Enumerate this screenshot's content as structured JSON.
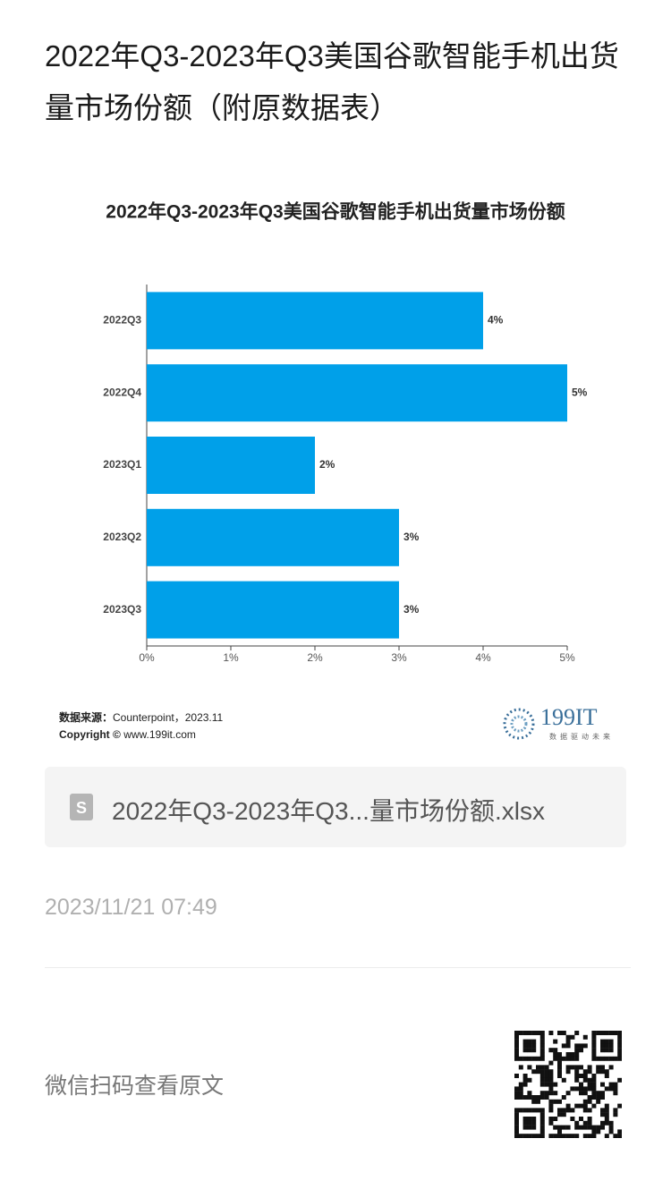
{
  "header": {
    "title": "2022年Q3-2023年Q3美国谷歌智能手机出货量市场份额（附原数据表）"
  },
  "chart_data": {
    "type": "hbar",
    "title": "2022年Q3-2023年Q3美国谷歌智能手机出货量市场份额",
    "categories": [
      "2022Q3",
      "2022Q4",
      "2023Q1",
      "2023Q2",
      "2023Q3"
    ],
    "values": [
      4,
      5,
      2,
      3,
      3
    ],
    "value_labels": [
      "4%",
      "5%",
      "2%",
      "3%",
      "3%"
    ],
    "color": "#00a0e9",
    "xlim": [
      0,
      5
    ],
    "xticks": [
      {
        "value": 0,
        "label": "0%"
      },
      {
        "value": 1,
        "label": "1%"
      },
      {
        "value": 2,
        "label": "2%"
      },
      {
        "value": 3,
        "label": "3%"
      },
      {
        "value": 4,
        "label": "4%"
      },
      {
        "value": 5,
        "label": "5%"
      }
    ],
    "grid": false
  },
  "source": {
    "label": "数据来源：",
    "text": "Counterpoint，2023.11"
  },
  "copyright": {
    "label": "Copyright ©",
    "text": "www.199it.com"
  },
  "logo": {
    "name": "199IT",
    "slogan": "数据驱动未来"
  },
  "file": {
    "icon": "S",
    "name": "2022年Q3-2023年Q3...量市场份额.xlsx"
  },
  "date": "2023/11/21 07:49",
  "footer": {
    "text": "微信扫码查看原文"
  }
}
